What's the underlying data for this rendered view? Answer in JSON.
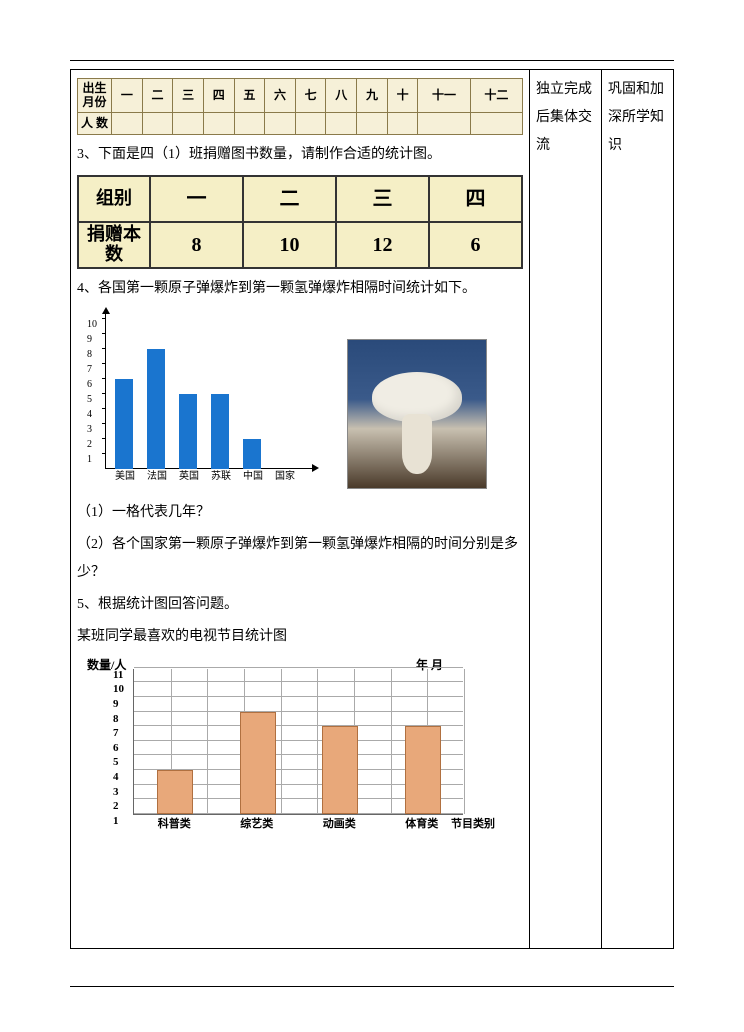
{
  "side1": "独立完成后集体交流",
  "side2": "巩固和加深所学知识",
  "table1": {
    "row1_header": "出生月份",
    "row2_header": "人 数",
    "months": [
      "一",
      "二",
      "三",
      "四",
      "五",
      "六",
      "七",
      "八",
      "九",
      "十",
      "十一",
      "十二"
    ]
  },
  "q3": "3、下面是四（1）班捐赠图书数量，请制作合适的统计图。",
  "table2": {
    "row1_header": "组别",
    "row2_header": "捐赠本数",
    "groups": [
      "一",
      "二",
      "三",
      "四"
    ],
    "values": [
      "8",
      "10",
      "12",
      "6"
    ]
  },
  "q4": "4、各国第一颗原子弹爆炸到第一颗氢弹爆炸相隔时间统计如下。",
  "chart1": {
    "ylim": [
      0,
      10
    ],
    "yticks": [
      1,
      2,
      3,
      4,
      5,
      6,
      7,
      8,
      9,
      10
    ],
    "categories": [
      "美国",
      "法国",
      "英国",
      "苏联",
      "中国",
      "国家"
    ],
    "values": [
      6,
      8,
      5,
      5,
      2
    ],
    "bar_color": "#1a75cf",
    "axis_color": "#000000"
  },
  "q4_1": "（1）一格代表几年？",
  "q4_2": "（2）各个国家第一颗原子弹爆炸到第一颗氢弹爆炸相隔的时间分别是多少？",
  "q5": "5、根据统计图回答问题。",
  "q5_sub": "某班同学最喜欢的电视节目统计图",
  "chart2": {
    "ylabel": "数量/人",
    "date_label": "年    月",
    "xlabel": "节目类别",
    "ylim": [
      1,
      11
    ],
    "yticks": [
      1,
      2,
      3,
      4,
      5,
      6,
      7,
      8,
      9,
      10,
      11
    ],
    "categories": [
      "科普类",
      "综艺类",
      "动画类",
      "体育类"
    ],
    "values": [
      4,
      8,
      7,
      7
    ],
    "bar_color": "#e8a87a",
    "bar_border": "#b07040",
    "grid_color": "#aaaaaa",
    "n_vgrids": 9
  }
}
